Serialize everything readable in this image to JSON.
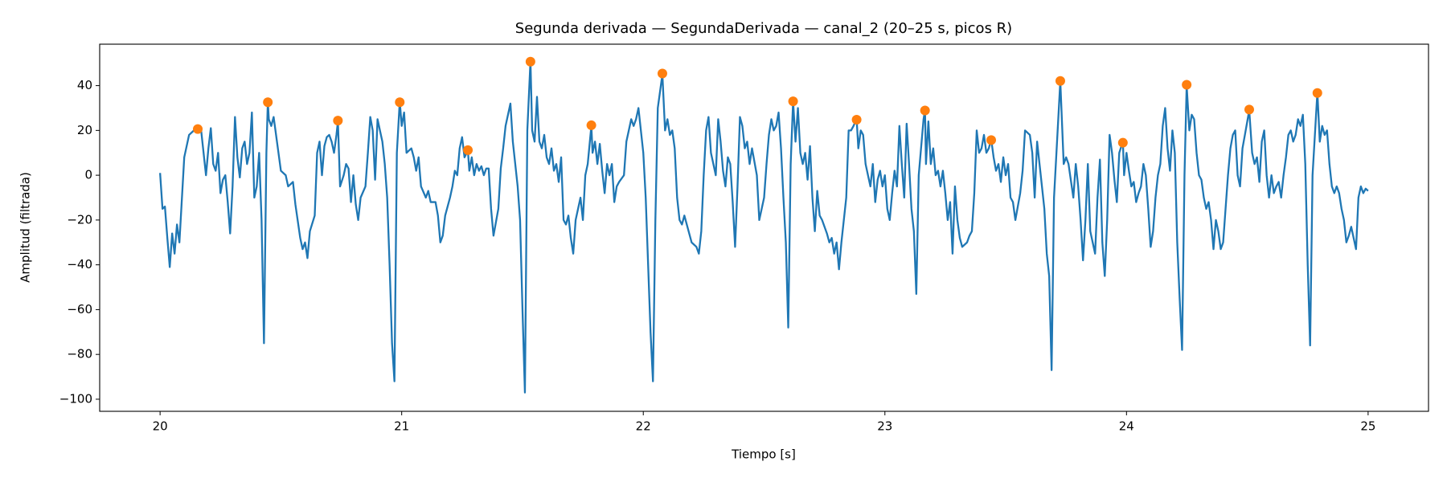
{
  "chart_data": {
    "type": "line",
    "title": "Segunda derivada — SegundaDerivada — canal_2 (20–25 s, picos R)",
    "x_label": "Tiempo [s]",
    "y_label": "Amplitud (filtrada)",
    "xlim": [
      19.75,
      25.25
    ],
    "ylim": [
      -105.4,
      58.5
    ],
    "xticks": [
      20,
      21,
      22,
      23,
      24,
      25
    ],
    "yticks": [
      {
        "value": -100,
        "label": "−100"
      },
      {
        "value": -80,
        "label": "−80"
      },
      {
        "value": -60,
        "label": "−60"
      },
      {
        "value": -40,
        "label": "−40"
      },
      {
        "value": -20,
        "label": "−20"
      },
      0,
      20,
      40
    ],
    "grid": false,
    "series": [
      {
        "type": "line",
        "color": "#1f77b4",
        "x": [
          20.0,
          20.01,
          20.02,
          20.03,
          20.04,
          20.05,
          20.06,
          20.07,
          20.08,
          20.1,
          20.12,
          20.14,
          20.156,
          20.17,
          20.18,
          20.19,
          20.2,
          20.21,
          20.22,
          20.23,
          20.24,
          20.25,
          20.26,
          20.27,
          20.28,
          20.29,
          20.3,
          20.31,
          20.32,
          20.33,
          20.34,
          20.35,
          20.36,
          20.37,
          20.38,
          20.39,
          20.4,
          20.41,
          20.42,
          20.43,
          20.44,
          20.446,
          20.45,
          20.46,
          20.47,
          20.48,
          20.49,
          20.5,
          20.52,
          20.53,
          20.55,
          20.56,
          20.58,
          20.59,
          20.6,
          20.61,
          20.62,
          20.64,
          20.65,
          20.66,
          20.67,
          20.68,
          20.69,
          20.7,
          20.71,
          20.72,
          20.73,
          20.736,
          20.745,
          20.76,
          20.77,
          20.78,
          20.79,
          20.8,
          20.81,
          20.82,
          20.83,
          20.85,
          20.86,
          20.87,
          20.88,
          20.89,
          20.9,
          20.91,
          20.92,
          20.93,
          20.94,
          20.95,
          20.96,
          20.97,
          20.98,
          20.992,
          21.0,
          21.01,
          21.02,
          21.04,
          21.05,
          21.06,
          21.07,
          21.08,
          21.1,
          21.11,
          21.12,
          21.14,
          21.15,
          21.16,
          21.17,
          21.18,
          21.2,
          21.21,
          21.22,
          21.23,
          21.24,
          21.25,
          21.26,
          21.274,
          21.28,
          21.29,
          21.3,
          21.31,
          21.32,
          21.33,
          21.34,
          21.35,
          21.36,
          21.37,
          21.38,
          21.4,
          21.41,
          21.42,
          21.43,
          21.45,
          21.46,
          21.48,
          21.49,
          21.5,
          21.51,
          21.52,
          21.533,
          21.54,
          21.55,
          21.56,
          21.57,
          21.58,
          21.59,
          21.6,
          21.61,
          21.62,
          21.63,
          21.64,
          21.65,
          21.66,
          21.67,
          21.68,
          21.69,
          21.7,
          21.71,
          21.72,
          21.74,
          21.75,
          21.76,
          21.77,
          21.785,
          21.79,
          21.8,
          21.81,
          21.82,
          21.83,
          21.84,
          21.85,
          21.86,
          21.87,
          21.88,
          21.89,
          21.9,
          21.92,
          21.93,
          21.94,
          21.95,
          21.96,
          21.97,
          21.98,
          21.99,
          22.0,
          22.01,
          22.02,
          22.03,
          22.04,
          22.05,
          22.06,
          22.079,
          22.09,
          22.1,
          22.11,
          22.12,
          22.13,
          22.14,
          22.15,
          22.16,
          22.17,
          22.18,
          22.2,
          22.22,
          22.23,
          22.24,
          22.25,
          22.26,
          22.27,
          22.28,
          22.29,
          22.3,
          22.31,
          22.32,
          22.33,
          22.34,
          22.35,
          22.36,
          22.37,
          22.38,
          22.39,
          22.4,
          22.41,
          22.42,
          22.43,
          22.44,
          22.45,
          22.47,
          22.48,
          22.5,
          22.51,
          22.52,
          22.53,
          22.54,
          22.55,
          22.56,
          22.57,
          22.58,
          22.59,
          22.6,
          22.61,
          22.62,
          22.63,
          22.64,
          22.65,
          22.66,
          22.67,
          22.68,
          22.69,
          22.7,
          22.71,
          22.72,
          22.73,
          22.74,
          22.76,
          22.77,
          22.78,
          22.79,
          22.8,
          22.81,
          22.82,
          22.84,
          22.85,
          22.86,
          22.87,
          22.883,
          22.89,
          22.9,
          22.91,
          22.92,
          22.93,
          22.94,
          22.95,
          22.96,
          22.97,
          22.98,
          22.99,
          23.0,
          23.01,
          23.02,
          23.03,
          23.04,
          23.05,
          23.06,
          23.07,
          23.08,
          23.09,
          23.1,
          23.11,
          23.12,
          23.13,
          23.14,
          23.16,
          23.166,
          23.17,
          23.18,
          23.19,
          23.2,
          23.21,
          23.22,
          23.23,
          23.24,
          23.25,
          23.26,
          23.27,
          23.28,
          23.29,
          23.3,
          23.31,
          23.32,
          23.34,
          23.35,
          23.36,
          23.37,
          23.38,
          23.39,
          23.4,
          23.41,
          23.42,
          23.43,
          23.44,
          23.45,
          23.46,
          23.47,
          23.48,
          23.49,
          23.5,
          23.51,
          23.52,
          23.53,
          23.54,
          23.56,
          23.57,
          23.58,
          23.6,
          23.61,
          23.62,
          23.63,
          23.64,
          23.65,
          23.66,
          23.67,
          23.68,
          23.69,
          23.7,
          23.726,
          23.74,
          23.75,
          23.76,
          23.78,
          23.79,
          23.8,
          23.81,
          23.82,
          23.83,
          23.84,
          23.85,
          23.86,
          23.87,
          23.88,
          23.89,
          23.9,
          23.91,
          23.92,
          23.93,
          23.94,
          23.95,
          23.96,
          23.97,
          23.985,
          23.99,
          24.0,
          24.01,
          24.02,
          24.03,
          24.04,
          24.05,
          24.06,
          24.07,
          24.08,
          24.09,
          24.1,
          24.11,
          24.12,
          24.13,
          24.14,
          24.15,
          24.16,
          24.17,
          24.18,
          24.19,
          24.2,
          24.21,
          24.22,
          24.23,
          24.24,
          24.249,
          24.26,
          24.27,
          24.28,
          24.29,
          24.3,
          24.31,
          24.32,
          24.33,
          24.34,
          24.35,
          24.36,
          24.37,
          24.38,
          24.39,
          24.4,
          24.41,
          24.42,
          24.43,
          24.44,
          24.45,
          24.46,
          24.47,
          24.48,
          24.49,
          24.508,
          24.52,
          24.53,
          24.54,
          24.55,
          24.56,
          24.57,
          24.58,
          24.59,
          24.6,
          24.61,
          24.62,
          24.63,
          24.64,
          24.65,
          24.66,
          24.67,
          24.68,
          24.69,
          24.7,
          24.71,
          24.72,
          24.73,
          24.74,
          24.75,
          24.76,
          24.77,
          24.79,
          24.8,
          24.81,
          24.82,
          24.83,
          24.84,
          24.85,
          24.86,
          24.87,
          24.88,
          24.89,
          24.9,
          24.91,
          24.92,
          24.93,
          24.94,
          24.95,
          24.96,
          24.97,
          24.98,
          24.99,
          25.0
        ],
        "values": [
          1,
          -15,
          -14,
          -28,
          -41,
          -26,
          -35,
          -22,
          -30,
          8,
          18,
          20,
          21,
          20,
          10,
          0,
          12,
          21,
          5,
          2,
          10,
          -8,
          -2,
          0,
          -12,
          -26,
          -5,
          26,
          8,
          -1,
          12,
          15,
          5,
          10,
          28,
          -10,
          -5,
          10,
          -20,
          -75,
          10,
          33,
          25,
          22,
          26,
          18,
          10,
          2,
          0,
          -5,
          -3,
          -13,
          -28,
          -33,
          -30,
          -37,
          -25,
          -18,
          10,
          15,
          0,
          13,
          17,
          18,
          15,
          10,
          18,
          24,
          -5,
          0,
          5,
          3,
          -12,
          0,
          -13,
          -20,
          -10,
          -5,
          10,
          26,
          20,
          -2,
          25,
          20,
          15,
          5,
          -10,
          -40,
          -75,
          -92,
          10,
          33,
          22,
          28,
          10,
          12,
          8,
          2,
          8,
          -5,
          -10,
          -7,
          -12,
          -12,
          -18,
          -30,
          -27,
          -18,
          -10,
          -5,
          2,
          0,
          12,
          17,
          8,
          11,
          2,
          8,
          0,
          5,
          2,
          4,
          0,
          3,
          3,
          -15,
          -27,
          -15,
          3,
          12,
          22,
          32,
          15,
          -5,
          -20,
          -60,
          -97,
          20,
          51,
          20,
          15,
          35,
          15,
          12,
          18,
          8,
          5,
          12,
          2,
          5,
          -3,
          8,
          -20,
          -22,
          -18,
          -28,
          -35,
          -20,
          -10,
          -20,
          0,
          5,
          22,
          10,
          15,
          5,
          14,
          2,
          -8,
          5,
          0,
          5,
          -12,
          -5,
          -3,
          0,
          15,
          20,
          25,
          22,
          25,
          30,
          20,
          10,
          -10,
          -40,
          -70,
          -92,
          -20,
          30,
          45,
          20,
          25,
          18,
          20,
          12,
          -10,
          -20,
          -22,
          -18,
          -22,
          -30,
          -32,
          -35,
          -25,
          0,
          20,
          26,
          10,
          5,
          0,
          25,
          15,
          2,
          -5,
          8,
          5,
          -12,
          -32,
          -5,
          26,
          22,
          12,
          15,
          5,
          12,
          0,
          -20,
          -10,
          5,
          18,
          25,
          20,
          22,
          28,
          12,
          -10,
          -30,
          -68,
          5,
          33,
          15,
          30,
          10,
          5,
          10,
          -2,
          13,
          -10,
          -25,
          -7,
          -18,
          -20,
          -26,
          -30,
          -28,
          -35,
          -30,
          -42,
          -30,
          -10,
          20,
          20,
          22,
          25,
          12,
          20,
          18,
          5,
          0,
          -5,
          5,
          -12,
          -2,
          2,
          -5,
          0,
          -15,
          -20,
          -8,
          2,
          -5,
          22,
          5,
          -10,
          23,
          5,
          -15,
          -25,
          -53,
          0,
          25,
          29,
          5,
          24,
          5,
          12,
          0,
          2,
          -5,
          2,
          -8,
          -20,
          -12,
          -35,
          -5,
          -20,
          -28,
          -32,
          -30,
          -27,
          -25,
          -8,
          20,
          10,
          12,
          18,
          10,
          12,
          16,
          8,
          2,
          5,
          -3,
          8,
          0,
          5,
          -10,
          -12,
          -20,
          -8,
          2,
          20,
          18,
          10,
          -10,
          15,
          5,
          -5,
          -15,
          -35,
          -45,
          -87,
          -10,
          42,
          5,
          8,
          5,
          -10,
          5,
          -5,
          -20,
          -38,
          -20,
          5,
          -25,
          -30,
          -35,
          -10,
          7,
          -30,
          -45,
          -20,
          18,
          10,
          -2,
          -12,
          10,
          15,
          0,
          10,
          2,
          -5,
          -3,
          -12,
          -8,
          -5,
          5,
          0,
          -15,
          -32,
          -25,
          -10,
          0,
          5,
          22,
          30,
          12,
          2,
          20,
          10,
          -30,
          -55,
          -78,
          0,
          40,
          20,
          27,
          25,
          10,
          0,
          -2,
          -10,
          -15,
          -12,
          -20,
          -33,
          -20,
          -25,
          -33,
          -30,
          -15,
          0,
          12,
          18,
          20,
          0,
          -5,
          12,
          18,
          29,
          10,
          5,
          8,
          -3,
          15,
          20,
          0,
          -10,
          0,
          -8,
          -5,
          -3,
          -10,
          0,
          8,
          18,
          20,
          15,
          18,
          25,
          22,
          27,
          5,
          -40,
          -76,
          0,
          37,
          15,
          22,
          18,
          20,
          5,
          -5,
          -8,
          -5,
          -8,
          -15,
          -20,
          -30,
          -27,
          -23,
          -28,
          -33,
          -10,
          -5,
          -8,
          -6,
          -7
        ]
      },
      {
        "type": "scatter",
        "color": "#ff7f0e",
        "x": [
          20.156,
          20.446,
          20.736,
          20.992,
          21.274,
          21.533,
          21.785,
          22.079,
          22.62,
          22.883,
          23.166,
          23.44,
          23.726,
          23.985,
          24.249,
          24.508,
          24.79
        ],
        "values": [
          20.6,
          32.6,
          24.4,
          32.6,
          11.2,
          50.7,
          22.3,
          45.4,
          33.0,
          24.8,
          28.9,
          15.7,
          42.1,
          14.5,
          40.4,
          29.3,
          36.7
        ]
      }
    ]
  }
}
